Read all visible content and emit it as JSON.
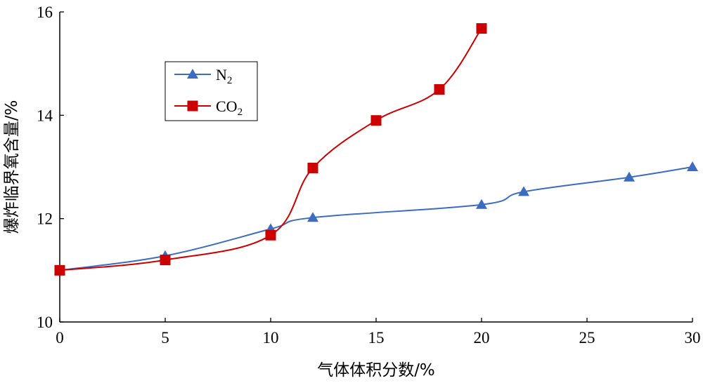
{
  "chart_data": {
    "type": "line",
    "xlabel": "气体体积分数/%",
    "ylabel": "爆炸临界氧含量/%",
    "xlim": [
      0,
      30
    ],
    "ylim": [
      10,
      16
    ],
    "xticks": [
      "0",
      "5",
      "10",
      "15",
      "20",
      "25",
      "30"
    ],
    "yticks": [
      "10",
      "12",
      "14",
      "16"
    ],
    "grid": false,
    "legend_position": "top-left",
    "series": [
      {
        "name": "N",
        "name_subscript": "2",
        "marker": "triangle",
        "color": "#3c6cc1",
        "x": [
          0,
          5,
          10,
          12,
          20,
          22,
          27,
          30
        ],
        "y": [
          11.0,
          11.28,
          11.8,
          12.02,
          12.27,
          12.52,
          12.8,
          13.0
        ]
      },
      {
        "name": "CO",
        "name_subscript": "2",
        "marker": "square",
        "color": "#cc0000",
        "x": [
          0,
          5,
          10,
          12,
          15,
          18,
          20
        ],
        "y": [
          11.0,
          11.2,
          11.68,
          12.98,
          13.9,
          14.5,
          15.68
        ]
      }
    ]
  }
}
